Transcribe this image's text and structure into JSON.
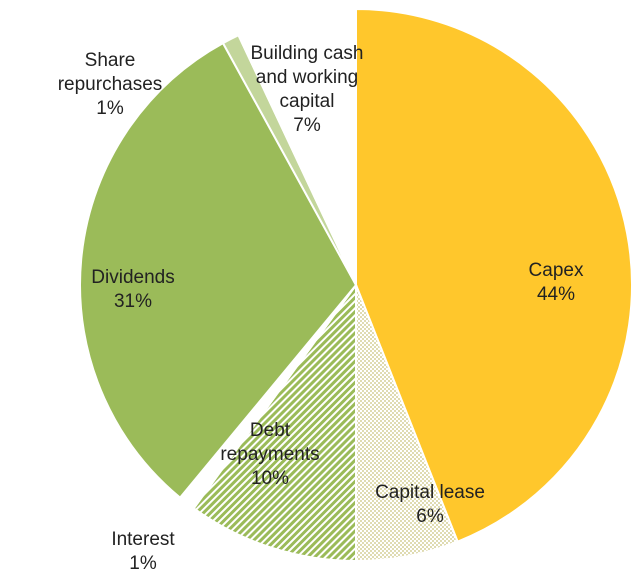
{
  "chart_data": {
    "type": "pie",
    "categories": [
      "Capex",
      "Capital lease",
      "Debt repayments",
      "Interest",
      "Dividends",
      "Share repurchases",
      "Building cash and working capital"
    ],
    "values": [
      44,
      6,
      10,
      1,
      31,
      1,
      7
    ],
    "value_labels": [
      "44%",
      "6%",
      "10%",
      "1%",
      "31%",
      "1%",
      "7%"
    ],
    "colors": [
      "#ffc72c",
      "#c9c27a",
      "#9bbb59",
      "#ffffff",
      "#9bbb59",
      "#c3d69b",
      "#ffffff"
    ],
    "patterns": [
      "solid",
      "dots",
      "hatch",
      "solid",
      "solid",
      "solid",
      "solid"
    ]
  }
}
